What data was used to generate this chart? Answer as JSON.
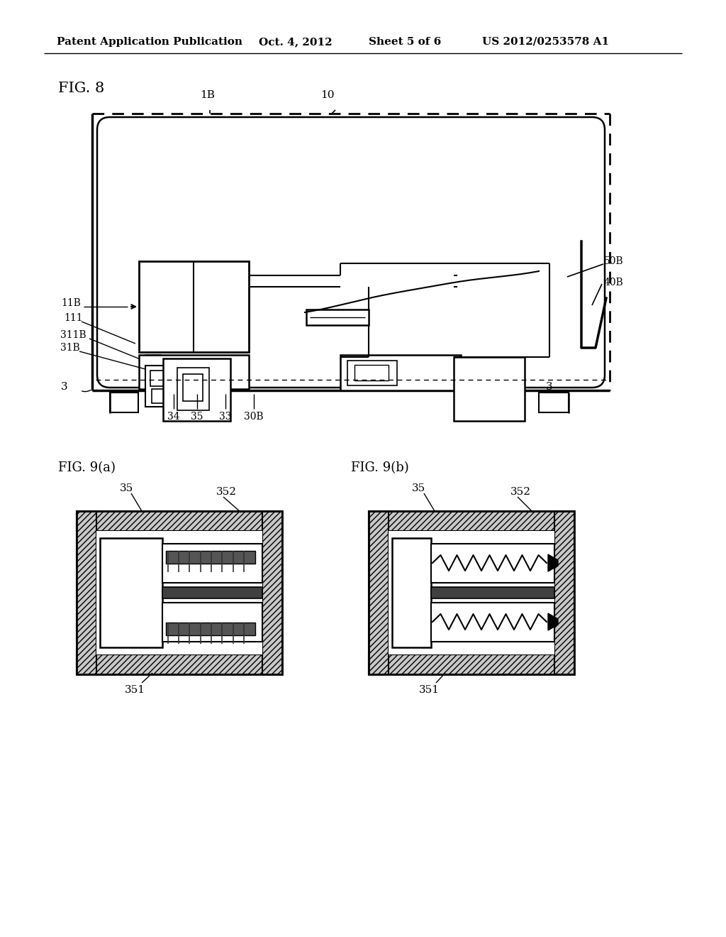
{
  "bg": "#ffffff",
  "lc": "#000000",
  "header_left": "Patent Application Publication",
  "header_mid": "Oct. 4, 2012   Sheet 5 of 6",
  "header_right": "US 2012/0253578 A1",
  "fig8_label": "FIG. 8",
  "fig9a_label": "FIG. 9(a)",
  "fig9b_label": "FIG. 9(b)"
}
